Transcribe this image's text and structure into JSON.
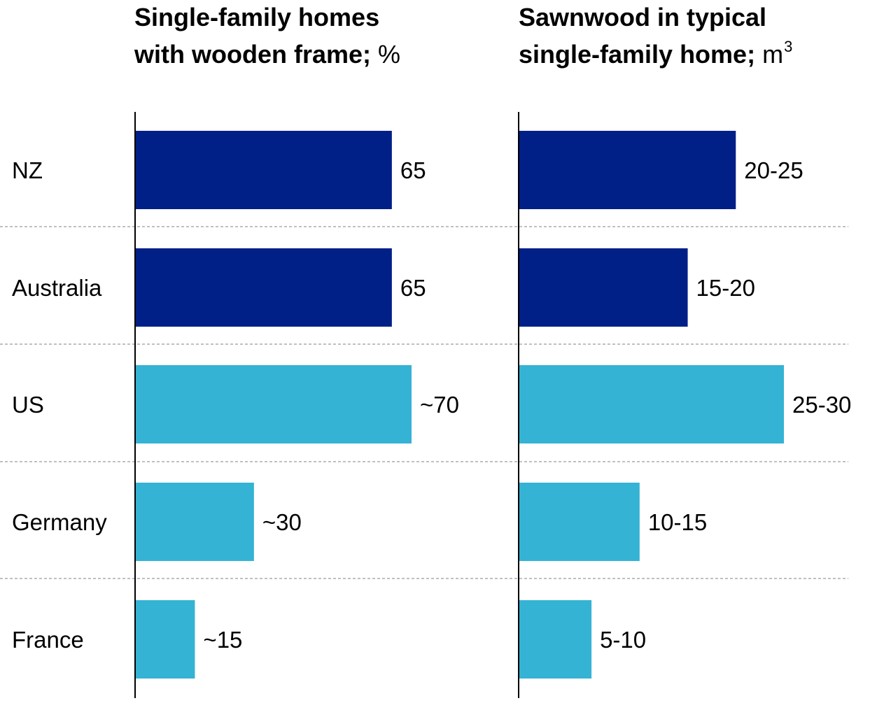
{
  "chart_data": [
    {
      "type": "bar",
      "orientation": "horizontal",
      "title": "Single-family homes with wooden frame;",
      "title_lines": [
        "Single-family homes",
        "with wooden frame;"
      ],
      "unit": "%",
      "categories": [
        "NZ",
        "Australia",
        "US",
        "Germany",
        "France"
      ],
      "values": [
        65,
        65,
        70,
        30,
        15
      ],
      "value_labels": [
        "65",
        "65",
        "~70",
        "~30",
        "~15"
      ],
      "bar_colors": [
        "#001F87",
        "#001F87",
        "#34B3D4",
        "#34B3D4",
        "#34B3D4"
      ],
      "xlim": [
        0,
        70
      ]
    },
    {
      "type": "bar",
      "orientation": "horizontal",
      "title": "Sawnwood in typical single-family home;",
      "title_lines": [
        "Sawnwood in typical",
        "single-family home;"
      ],
      "unit": "m",
      "unit_superscript": "3",
      "categories": [
        "NZ",
        "Australia",
        "US",
        "Germany",
        "France"
      ],
      "values": [
        22.5,
        17.5,
        27.5,
        12.5,
        7.5
      ],
      "value_labels": [
        "20-25",
        "15-20",
        "25-30",
        "10-15",
        "5-10"
      ],
      "bar_colors": [
        "#001F87",
        "#001F87",
        "#34B3D4",
        "#34B3D4",
        "#34B3D4"
      ],
      "xlim": [
        0,
        27.5
      ]
    }
  ],
  "row_separators": "dashed",
  "colors": {
    "dark_blue": "#001F87",
    "light_blue": "#34B3D4",
    "axis": "#000000",
    "separator": "#9A9A9A"
  }
}
